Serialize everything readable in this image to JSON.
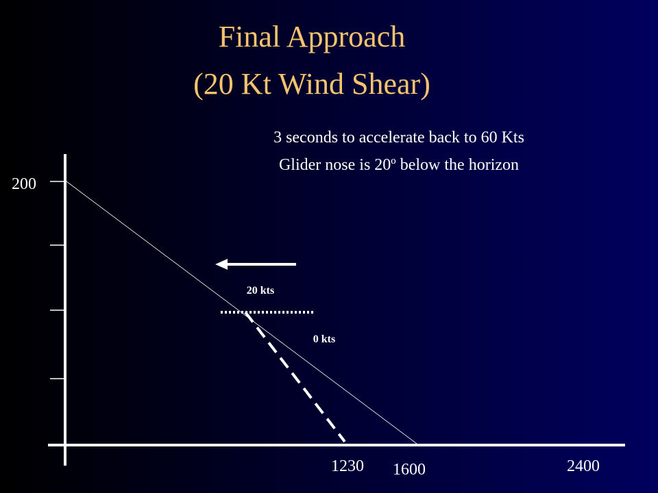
{
  "title": {
    "line1": "Final Approach",
    "line2": "(20 Kt Wind Shear)"
  },
  "notes": [
    "3 seconds to accelerate back to 60 Kts",
    "Glider nose is 20º below the horizon"
  ],
  "axis_labels": {
    "height": "200",
    "touchdown_shear": "1230",
    "touchdown_normal": "1600",
    "distance_end": "2400"
  },
  "wind_labels": {
    "headwind": "20 kts",
    "no_wind": "0 kts"
  }
}
